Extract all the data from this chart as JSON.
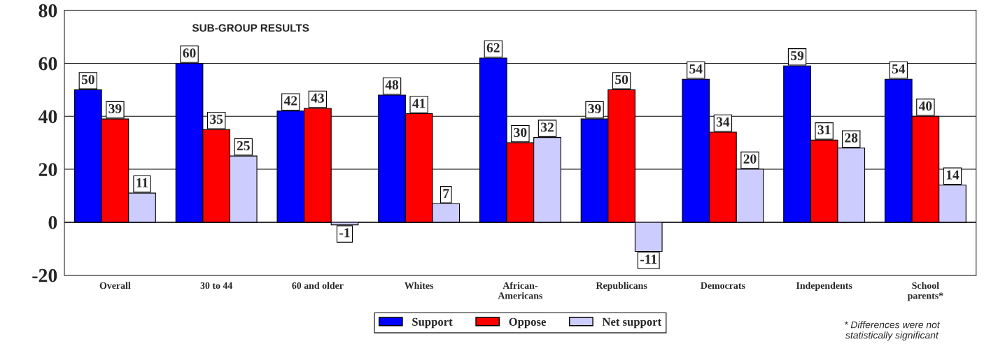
{
  "chart_data": {
    "type": "bar",
    "title": "SUB-GROUP RESULTS",
    "categories": [
      "Overall",
      "30 to 44",
      "60 and older",
      "Whites",
      "African-\nAmericans",
      "Republicans",
      "Democrats",
      "Independents",
      "School\nparents*"
    ],
    "series": [
      {
        "name": "Support",
        "color": "#0000ff",
        "values": [
          50,
          60,
          42,
          48,
          62,
          39,
          54,
          59,
          54
        ]
      },
      {
        "name": "Oppose",
        "color": "#ff0000",
        "values": [
          39,
          35,
          43,
          41,
          30,
          50,
          34,
          31,
          40
        ]
      },
      {
        "name": "Net support",
        "color": "#ccccff",
        "values": [
          11,
          25,
          -1,
          7,
          32,
          -11,
          20,
          28,
          14
        ]
      }
    ],
    "ylim": [
      -20,
      80
    ],
    "yticks": [
      -20,
      0,
      20,
      40,
      60,
      80
    ],
    "grid": "y",
    "legend": "bottom",
    "data_labels": true,
    "annotations": [
      "* Differences were not\nstatistically significant"
    ]
  }
}
